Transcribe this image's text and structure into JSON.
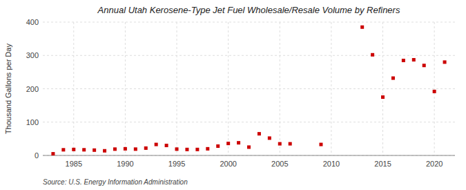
{
  "chart_data": {
    "type": "scatter",
    "title": "Annual Utah Kerosene-Type Jet Fuel Wholesale/Resale Volume by Refiners",
    "y_label": "Thousand Gallons per Day",
    "annotations": [
      "Source: U.S. Energy Information Administration"
    ],
    "x": [
      1983,
      1984,
      1985,
      1986,
      1987,
      1988,
      1989,
      1990,
      1991,
      1992,
      1993,
      1994,
      1995,
      1996,
      1997,
      1998,
      1999,
      2000,
      2001,
      2002,
      2003,
      2004,
      2005,
      2006,
      2009,
      2013,
      2014,
      2015,
      2016,
      2017,
      2018,
      2019,
      2020,
      2021
    ],
    "values": [
      5,
      17,
      18,
      17,
      16,
      14,
      19,
      20,
      19,
      22,
      33,
      30,
      19,
      18,
      18,
      20,
      28,
      36,
      38,
      25,
      65,
      52,
      35,
      35,
      33,
      385,
      302,
      175,
      232,
      285,
      287,
      270,
      192,
      280
    ],
    "color": "#cc0000",
    "marker": "square",
    "xlim": [
      1982,
      2022
    ],
    "ylim": [
      0,
      400
    ],
    "xticks": [
      1985,
      1990,
      1995,
      2000,
      2005,
      2010,
      2015,
      2020
    ],
    "yticks": [
      0,
      100,
      200,
      300,
      400
    ],
    "grid": true
  }
}
